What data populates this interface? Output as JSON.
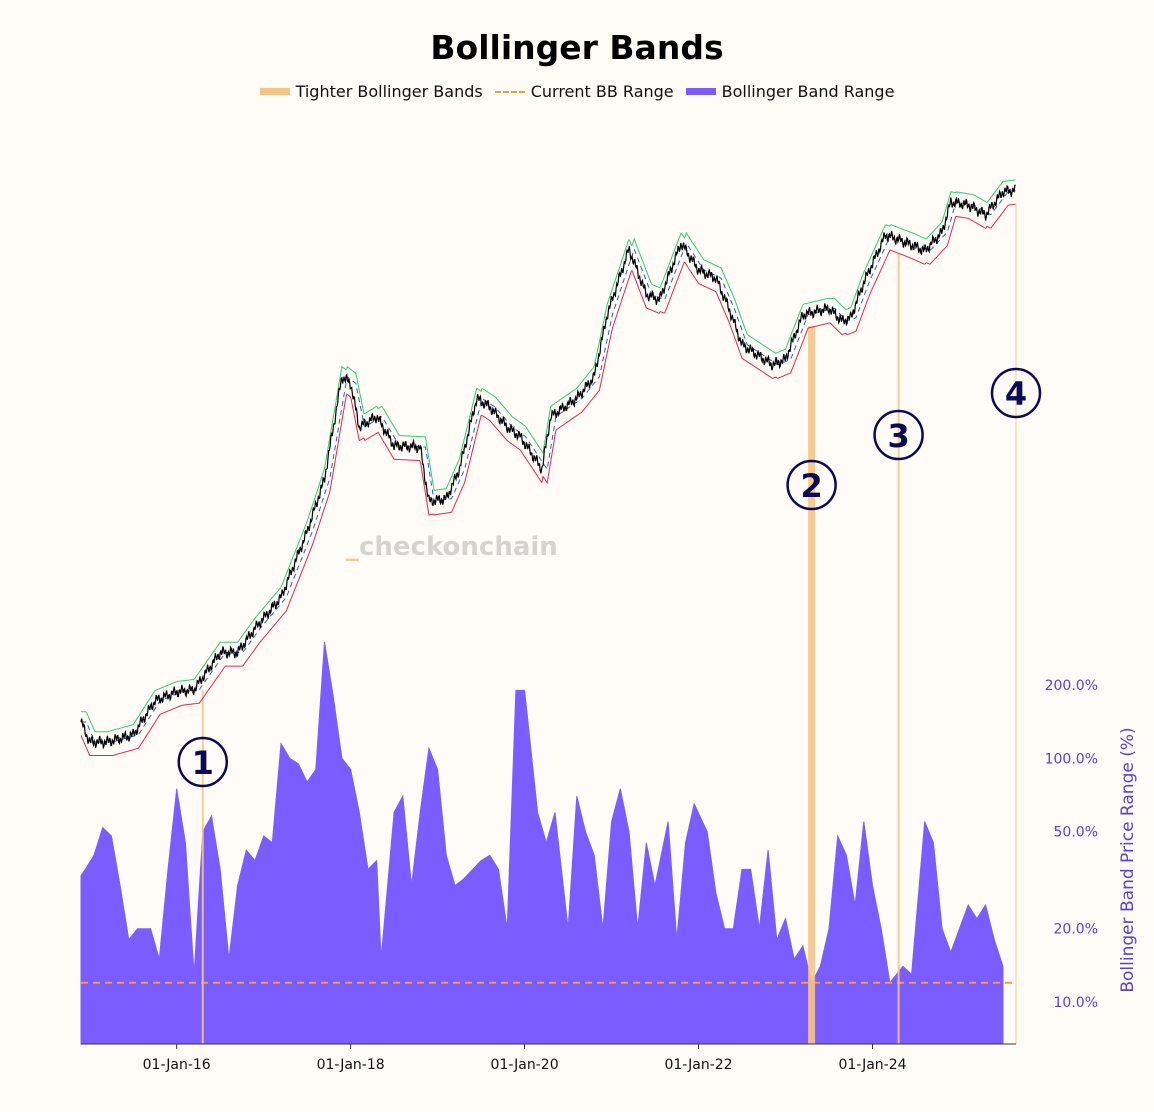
{
  "title": "Bollinger Bands",
  "legend": [
    {
      "label": "Tighter Bollinger Bands",
      "color": "#f7c488",
      "style": "thick-line"
    },
    {
      "label": "Current BB Range",
      "color": "#f0a030",
      "style": "dashed"
    },
    {
      "label": "Bollinger Band Range",
      "color": "#7b5cff",
      "style": "line"
    }
  ],
  "watermark": {
    "prefix": "_",
    "text": "checkonchain"
  },
  "colors": {
    "background": "#fffbf7",
    "price": "#000000",
    "upper_band": "#2ecc71",
    "lower_band": "#e8254a",
    "mid_band": "#2060d0",
    "range_fill": "#7b5cff",
    "tight_marker": "#f7c488",
    "current_range": "#f0a030",
    "annotation": "#0a0a55",
    "axis_text": "#5b3fd6"
  },
  "chart_data": {
    "type": "line",
    "title": "Bollinger Bands",
    "xlabel": "",
    "x_ticks": [
      "01-Jan-16",
      "01-Jan-18",
      "01-Jan-20",
      "01-Jan-22",
      "01-Jan-24"
    ],
    "x_tick_years": [
      2016,
      2018,
      2020,
      2022,
      2024
    ],
    "x_range_years": [
      2014.9,
      2025.65
    ],
    "y2": {
      "label": "Bollinger Band Price Range (%)",
      "scale": "log",
      "range": [
        7,
        400
      ],
      "ticks": [
        10,
        20,
        50,
        100,
        200
      ],
      "tick_labels": [
        "10.0%",
        "20.0%",
        "50.0%",
        "100.0%",
        "200.0%"
      ]
    },
    "grid": false,
    "legend_position": "top-center",
    "current_bb_range": 12,
    "price_series": {
      "name": "Price",
      "scale": "log",
      "points": [
        [
          2014.9,
          300
        ],
        [
          2015.0,
          240
        ],
        [
          2015.2,
          240
        ],
        [
          2015.5,
          260
        ],
        [
          2015.75,
          380
        ],
        [
          2016.0,
          420
        ],
        [
          2016.2,
          430
        ],
        [
          2016.5,
          650
        ],
        [
          2016.7,
          650
        ],
        [
          2016.9,
          850
        ],
        [
          2017.2,
          1200
        ],
        [
          2017.5,
          2500
        ],
        [
          2017.7,
          4500
        ],
        [
          2017.9,
          14000
        ],
        [
          2018.0,
          13000
        ],
        [
          2018.1,
          8000
        ],
        [
          2018.3,
          9000
        ],
        [
          2018.5,
          6500
        ],
        [
          2018.8,
          6400
        ],
        [
          2018.9,
          3500
        ],
        [
          2019.1,
          3600
        ],
        [
          2019.25,
          5000
        ],
        [
          2019.45,
          11000
        ],
        [
          2019.6,
          10000
        ],
        [
          2019.8,
          8000
        ],
        [
          2019.95,
          7200
        ],
        [
          2020.2,
          5000
        ],
        [
          2020.3,
          9000
        ],
        [
          2020.6,
          11000
        ],
        [
          2020.8,
          14000
        ],
        [
          2020.95,
          28000
        ],
        [
          2021.2,
          58000
        ],
        [
          2021.4,
          35000
        ],
        [
          2021.55,
          33000
        ],
        [
          2021.8,
          62000
        ],
        [
          2022.0,
          46000
        ],
        [
          2022.2,
          42000
        ],
        [
          2022.35,
          30000
        ],
        [
          2022.5,
          20000
        ],
        [
          2022.85,
          16000
        ],
        [
          2023.0,
          17000
        ],
        [
          2023.2,
          28000
        ],
        [
          2023.5,
          30000
        ],
        [
          2023.65,
          26000
        ],
        [
          2023.75,
          27000
        ],
        [
          2023.9,
          40000
        ],
        [
          2024.15,
          68000
        ],
        [
          2024.4,
          62000
        ],
        [
          2024.6,
          57000
        ],
        [
          2024.8,
          70000
        ],
        [
          2024.9,
          98000
        ],
        [
          2025.1,
          95000
        ],
        [
          2025.3,
          85000
        ],
        [
          2025.5,
          110000
        ],
        [
          2025.65,
          112000
        ]
      ]
    },
    "range_series": {
      "name": "Bollinger Band Range",
      "unit": "%",
      "points": [
        [
          2014.9,
          33
        ],
        [
          2014.95,
          35
        ],
        [
          2015.05,
          40
        ],
        [
          2015.15,
          52
        ],
        [
          2015.25,
          48
        ],
        [
          2015.35,
          30
        ],
        [
          2015.45,
          18
        ],
        [
          2015.55,
          20
        ],
        [
          2015.7,
          20
        ],
        [
          2015.8,
          15
        ],
        [
          2015.9,
          35
        ],
        [
          2016.0,
          75
        ],
        [
          2016.1,
          45
        ],
        [
          2016.2,
          13
        ],
        [
          2016.3,
          50
        ],
        [
          2016.4,
          58
        ],
        [
          2016.5,
          35
        ],
        [
          2016.6,
          15
        ],
        [
          2016.7,
          30
        ],
        [
          2016.8,
          42
        ],
        [
          2016.9,
          38
        ],
        [
          2017.0,
          48
        ],
        [
          2017.1,
          45
        ],
        [
          2017.2,
          115
        ],
        [
          2017.3,
          100
        ],
        [
          2017.4,
          95
        ],
        [
          2017.5,
          80
        ],
        [
          2017.6,
          90
        ],
        [
          2017.7,
          300
        ],
        [
          2017.8,
          180
        ],
        [
          2017.9,
          100
        ],
        [
          2018.0,
          90
        ],
        [
          2018.1,
          60
        ],
        [
          2018.2,
          35
        ],
        [
          2018.3,
          38
        ],
        [
          2018.35,
          15
        ],
        [
          2018.5,
          60
        ],
        [
          2018.6,
          70
        ],
        [
          2018.7,
          30
        ],
        [
          2018.8,
          60
        ],
        [
          2018.9,
          110
        ],
        [
          2019.0,
          90
        ],
        [
          2019.1,
          40
        ],
        [
          2019.2,
          30
        ],
        [
          2019.3,
          32
        ],
        [
          2019.5,
          38
        ],
        [
          2019.6,
          40
        ],
        [
          2019.7,
          35
        ],
        [
          2019.8,
          20
        ],
        [
          2019.9,
          190
        ],
        [
          2020.0,
          190
        ],
        [
          2020.15,
          60
        ],
        [
          2020.25,
          45
        ],
        [
          2020.35,
          60
        ],
        [
          2020.5,
          20
        ],
        [
          2020.6,
          70
        ],
        [
          2020.7,
          50
        ],
        [
          2020.8,
          40
        ],
        [
          2020.9,
          20
        ],
        [
          2021.0,
          55
        ],
        [
          2021.1,
          75
        ],
        [
          2021.2,
          50
        ],
        [
          2021.3,
          20
        ],
        [
          2021.4,
          45
        ],
        [
          2021.5,
          30
        ],
        [
          2021.65,
          55
        ],
        [
          2021.75,
          18
        ],
        [
          2021.85,
          45
        ],
        [
          2021.95,
          65
        ],
        [
          2022.1,
          50
        ],
        [
          2022.2,
          28
        ],
        [
          2022.3,
          20
        ],
        [
          2022.4,
          20
        ],
        [
          2022.5,
          35
        ],
        [
          2022.6,
          35
        ],
        [
          2022.7,
          20
        ],
        [
          2022.8,
          42
        ],
        [
          2022.9,
          18
        ],
        [
          2023.0,
          22
        ],
        [
          2023.1,
          15
        ],
        [
          2023.2,
          17
        ],
        [
          2023.3,
          12
        ],
        [
          2023.4,
          14
        ],
        [
          2023.5,
          20
        ],
        [
          2023.6,
          48
        ],
        [
          2023.7,
          40
        ],
        [
          2023.8,
          25
        ],
        [
          2023.9,
          55
        ],
        [
          2024.0,
          30
        ],
        [
          2024.1,
          20
        ],
        [
          2024.2,
          12
        ],
        [
          2024.35,
          14
        ],
        [
          2024.45,
          13
        ],
        [
          2024.6,
          55
        ],
        [
          2024.7,
          45
        ],
        [
          2024.8,
          20
        ],
        [
          2024.9,
          16
        ],
        [
          2025.0,
          20
        ],
        [
          2025.1,
          25
        ],
        [
          2025.2,
          22
        ],
        [
          2025.3,
          25
        ],
        [
          2025.4,
          18
        ],
        [
          2025.5,
          14
        ]
      ]
    },
    "tight_periods": [
      {
        "label": "1",
        "year": 2016.3
      },
      {
        "label": "2",
        "year": 2023.3
      },
      {
        "label": "3",
        "year": 2024.3
      },
      {
        "label": "4",
        "year": 2025.65
      }
    ]
  }
}
